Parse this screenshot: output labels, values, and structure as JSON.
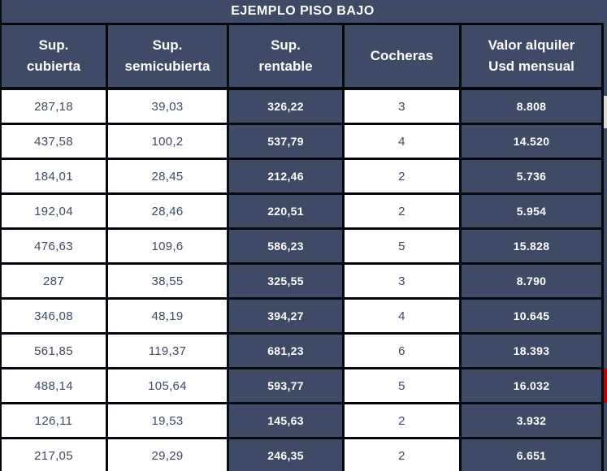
{
  "title": "EJEMPLO PISO BAJO",
  "table": {
    "headers": [
      "Sup.\ncubierta",
      "Sup.\nsemicubierta",
      "Sup.\nrentable",
      "Cocheras",
      "Valor alquiler\nUsd mensual"
    ]
  },
  "chart_data": {
    "type": "table",
    "title": "EJEMPLO PISO BAJO",
    "columns": [
      "Sup. cubierta",
      "Sup. semicubierta",
      "Sup. rentable",
      "Cocheras",
      "Valor alquiler Usd mensual"
    ],
    "rows": [
      [
        "287,18",
        "39,03",
        "326,22",
        "3",
        "8.808"
      ],
      [
        "437,58",
        "100,2",
        "537,79",
        "4",
        "14.520"
      ],
      [
        "184,01",
        "28,45",
        "212,46",
        "2",
        "5.736"
      ],
      [
        "192,04",
        "28,46",
        "220,51",
        "2",
        "5.954"
      ],
      [
        "476,63",
        "109,6",
        "586,23",
        "5",
        "15.828"
      ],
      [
        "287",
        "38,55",
        "325,55",
        "3",
        "8.790"
      ],
      [
        "346,08",
        "48,19",
        "394,27",
        "4",
        "10.645"
      ],
      [
        "561,85",
        "119,37",
        "681,23",
        "6",
        "18.393"
      ],
      [
        "488,14",
        "105,64",
        "593,77",
        "5",
        "16.032"
      ],
      [
        "126,11",
        "19,53",
        "145,63",
        "2",
        "3.932"
      ],
      [
        "217,05",
        "29,29",
        "246,35",
        "2",
        "6.651"
      ]
    ],
    "layout_hints": {
      "dark_column_indexes": [
        2,
        4
      ],
      "last_row_clipped": true
    }
  },
  "colors": {
    "navy": "#3E4A66",
    "border": "#06080F",
    "white": "#FFFFFF",
    "text_on_white": "#3E4A63",
    "text_on_navy": "#FFFFFF",
    "sliver_gray": "#D9D9D9",
    "sliver_red": "#C00000"
  }
}
